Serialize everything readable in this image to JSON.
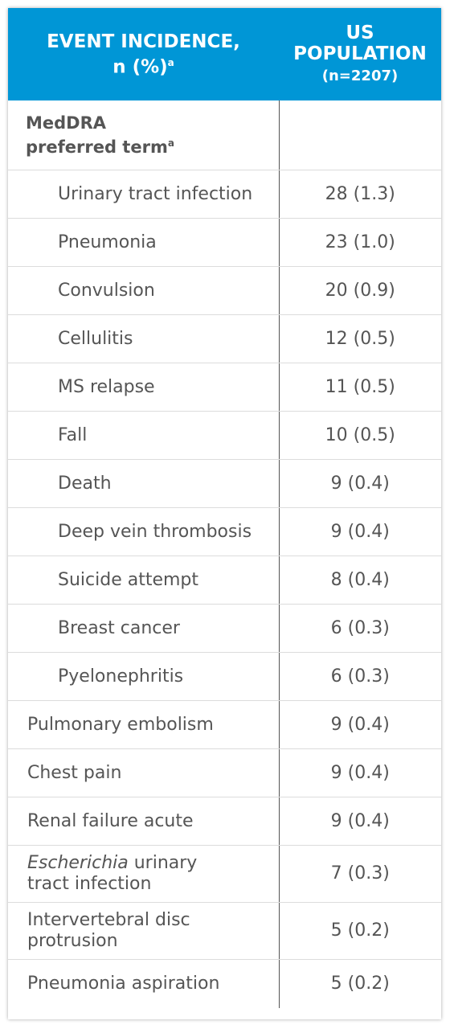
{
  "header": {
    "col1_line1": "EVENT INCIDENCE,",
    "col1_line2": "n (%)",
    "col1_sup": "a",
    "col2_line1": "US",
    "col2_line2": "POPULATION",
    "col2_line3": "(n=2207)"
  },
  "section": {
    "label_line1": "MedDRA",
    "label_line2": "preferred term",
    "label_sup": "a"
  },
  "rows_indented": [
    {
      "term": "Urinary tract infection",
      "value": "28 (1.3)"
    },
    {
      "term": "Pneumonia",
      "value": "23 (1.0)"
    },
    {
      "term": "Convulsion",
      "value": "20 (0.9)"
    },
    {
      "term": "Cellulitis",
      "value": "12 (0.5)"
    },
    {
      "term": "MS relapse",
      "value": "11 (0.5)"
    },
    {
      "term": "Fall",
      "value": "10 (0.5)"
    },
    {
      "term": "Death",
      "value": "9 (0.4)"
    },
    {
      "term": "Deep vein thrombosis",
      "value": "9 (0.4)"
    },
    {
      "term": "Suicide attempt",
      "value": "8 (0.4)"
    },
    {
      "term": "Breast cancer",
      "value": "6 (0.3)"
    },
    {
      "term": "Pyelonephritis",
      "value": "6 (0.3)"
    }
  ],
  "rows_outdented": [
    {
      "term": "Pulmonary embolism",
      "value": "9 (0.4)"
    },
    {
      "term": "Chest pain",
      "value": "9 (0.4)"
    },
    {
      "term": "Renal failure acute",
      "value": "9 (0.4)"
    },
    {
      "term_italic": "Escherichia",
      "term_rest": " urinary",
      "term_line2": "tract infection",
      "value": "7 (0.3)"
    },
    {
      "term": "Intervertebral disc",
      "term_line2": "protrusion",
      "value": "5 (0.2)"
    },
    {
      "term": "Pneumonia aspiration",
      "value": "5 (0.2)"
    }
  ],
  "colors": {
    "header_bg": "#0096d6",
    "text": "#555555",
    "divider": "#dcdcdc"
  }
}
